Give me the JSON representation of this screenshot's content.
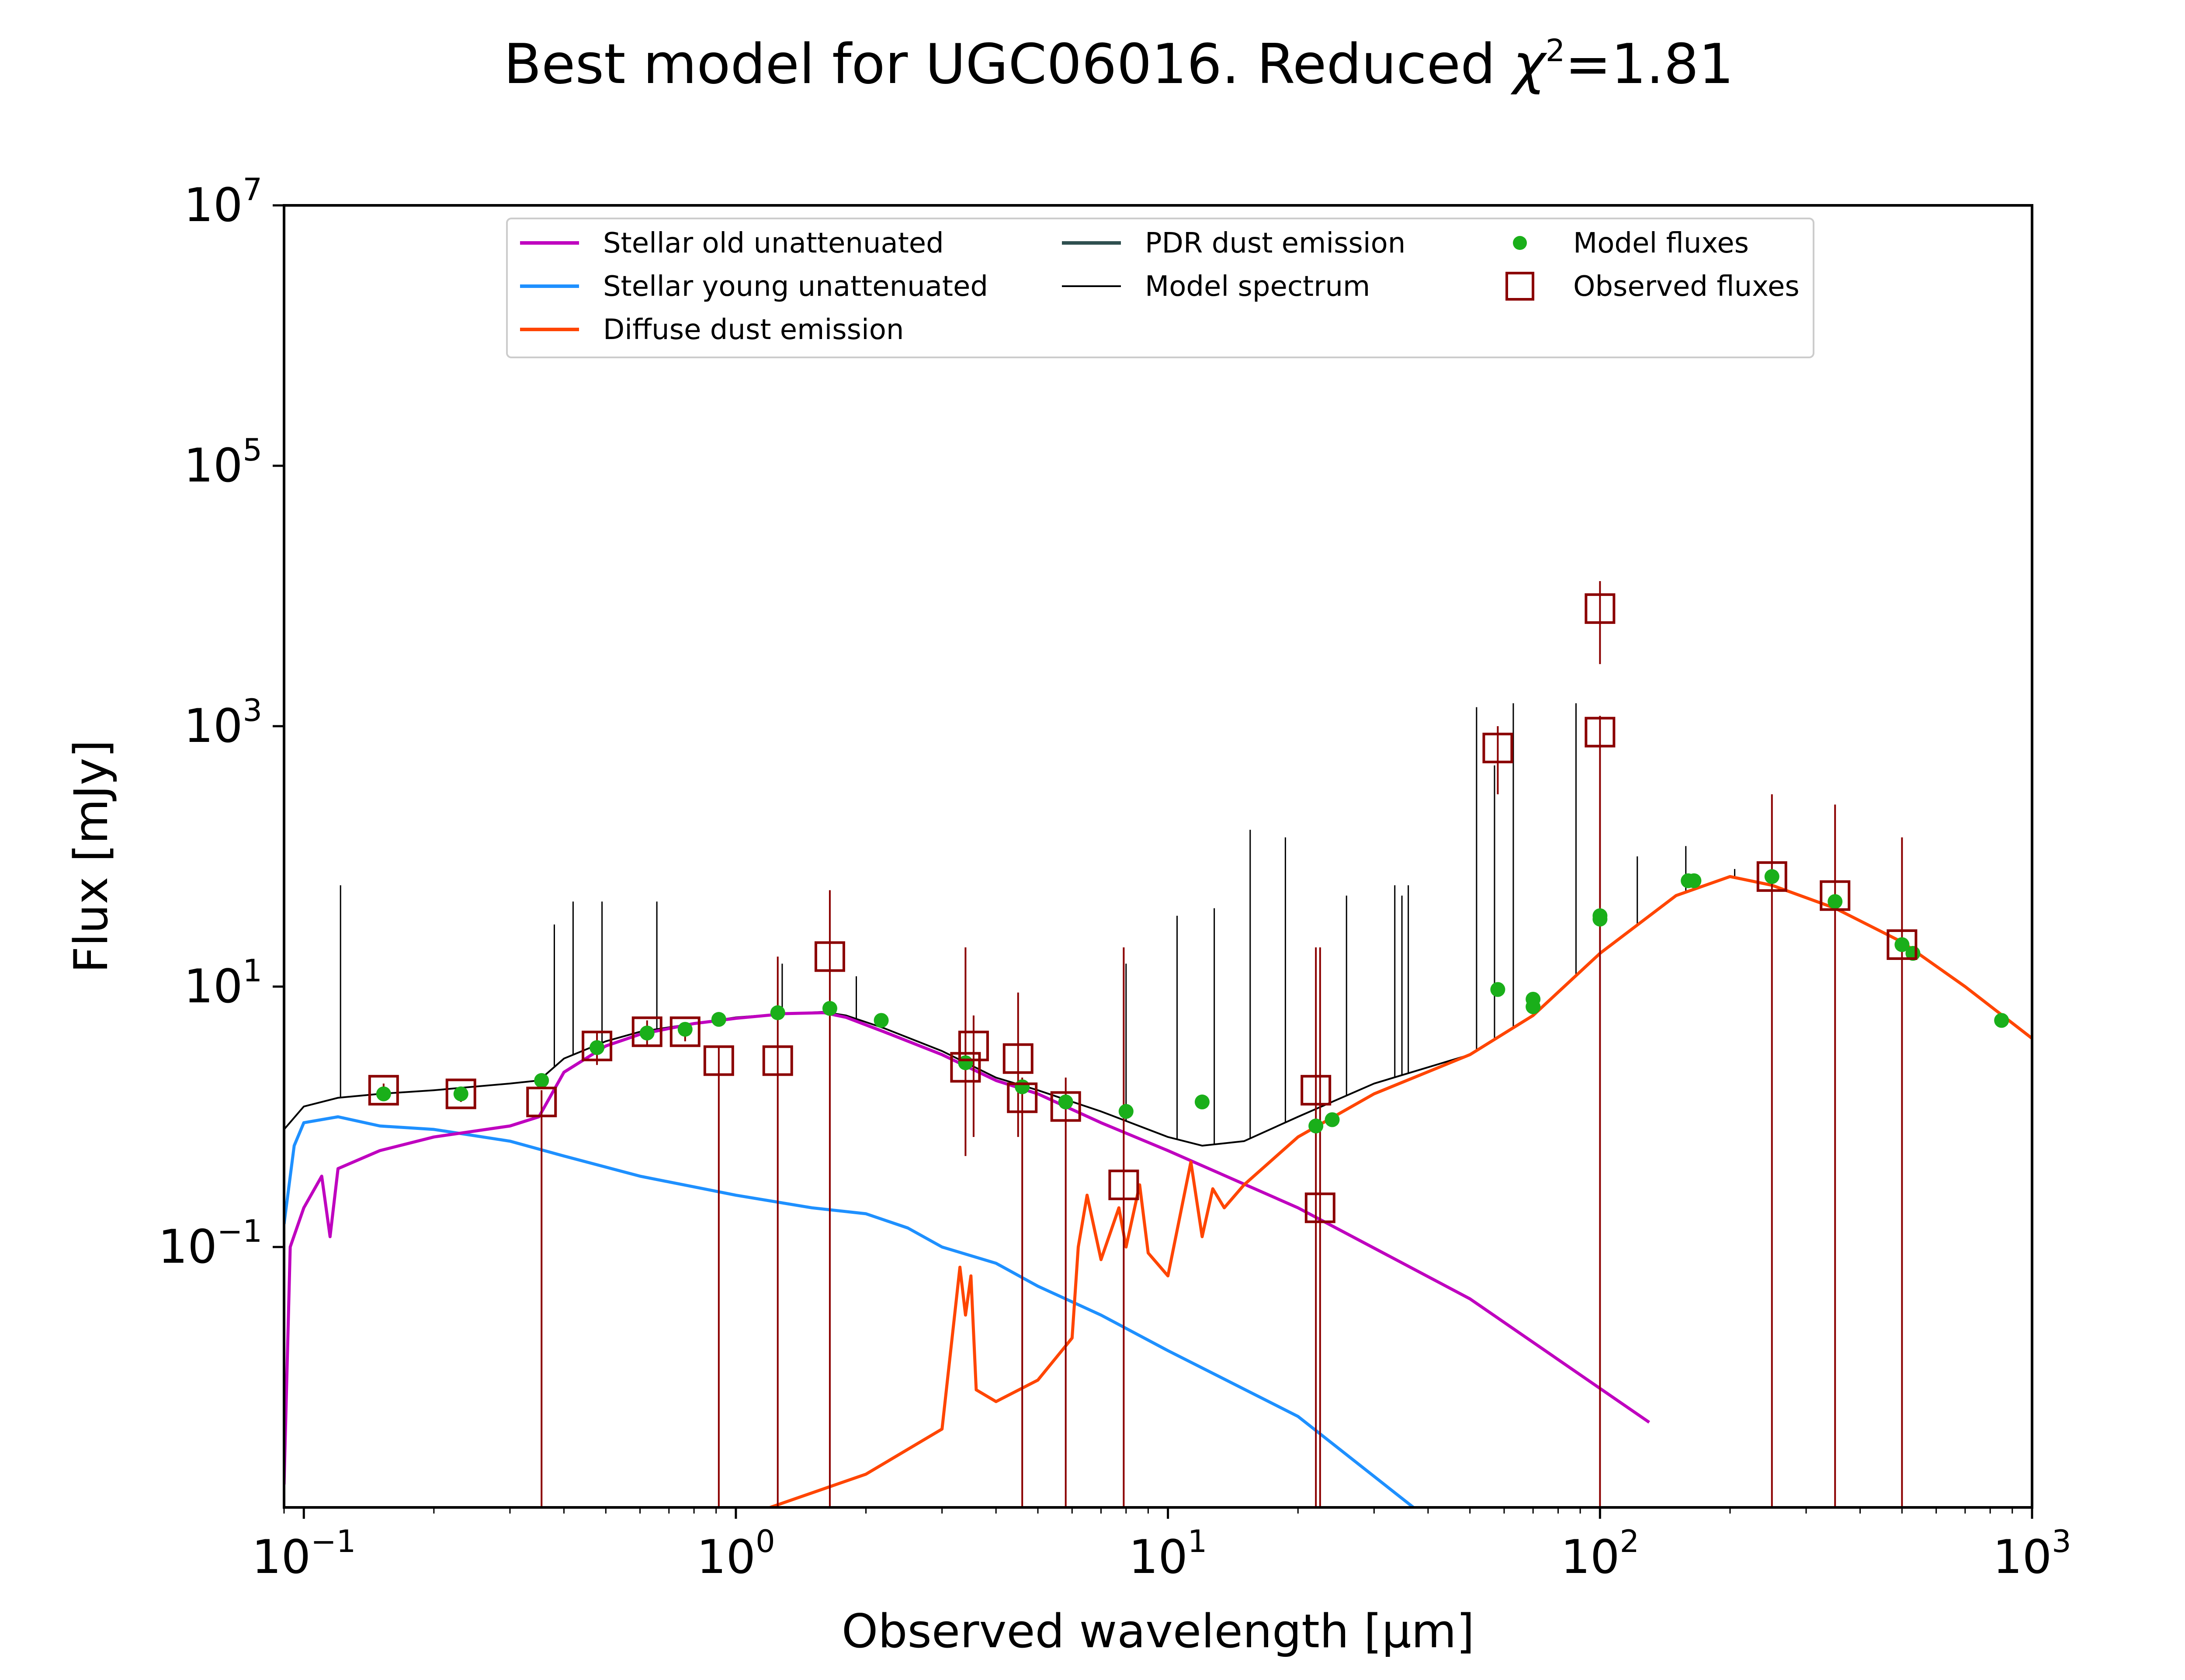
{
  "chart_data": {
    "type": "scatter",
    "title": "Best model for UGC06016. Reduced χ²=1.81",
    "title_parts": {
      "main": "Best model for UGC06016. Reduced ",
      "symbol": "χ",
      "sup": "2",
      "value": "=1.81"
    },
    "xlabel": "Observed wavelength [μm]",
    "ylabel": "Flux [mJy]",
    "x_scale": "log",
    "y_scale": "log",
    "xlim": [
      0.09,
      1000
    ],
    "ylim": [
      0.001,
      10000000
    ],
    "grid": false,
    "legend_position": "top-center",
    "x_ticks": [
      {
        "value": 0.1,
        "base": "10",
        "exp": "−1"
      },
      {
        "value": 1,
        "base": "10",
        "exp": "0"
      },
      {
        "value": 10,
        "base": "10",
        "exp": "1"
      },
      {
        "value": 100,
        "base": "10",
        "exp": "2"
      },
      {
        "value": 1000,
        "base": "10",
        "exp": "3"
      }
    ],
    "y_ticks": [
      {
        "value": 0.1,
        "base": "10",
        "exp": "−1"
      },
      {
        "value": 10,
        "base": "10",
        "exp": "1"
      },
      {
        "value": 1000,
        "base": "10",
        "exp": "3"
      },
      {
        "value": 100000,
        "base": "10",
        "exp": "5"
      },
      {
        "value": 10000000,
        "base": "10",
        "exp": "7"
      }
    ],
    "legend": [
      {
        "label": "Stellar old unattenuated",
        "kind": "line",
        "color": "#bf00bf"
      },
      {
        "label": "Stellar young unattenuated",
        "kind": "line",
        "color": "#1e90ff"
      },
      {
        "label": "Diffuse dust emission",
        "kind": "line",
        "color": "#ff4500"
      },
      {
        "label": "PDR dust emission",
        "kind": "line",
        "color": "#2f4f4f"
      },
      {
        "label": "Model spectrum",
        "kind": "line",
        "color": "#000000"
      },
      {
        "label": "Model fluxes",
        "kind": "marker-dot",
        "color": "#1aaf1a"
      },
      {
        "label": "Observed fluxes",
        "kind": "marker-square",
        "color": "#8b0000"
      }
    ],
    "series": [
      {
        "name": "Stellar old unattenuated",
        "color": "#bf00bf",
        "points": [
          [
            0.09,
            0.0015
          ],
          [
            0.093,
            0.1
          ],
          [
            0.1,
            0.2
          ],
          [
            0.11,
            0.35
          ],
          [
            0.115,
            0.12
          ],
          [
            0.12,
            0.4
          ],
          [
            0.15,
            0.55
          ],
          [
            0.2,
            0.7
          ],
          [
            0.3,
            0.85
          ],
          [
            0.35,
            1.0
          ],
          [
            0.4,
            2.2
          ],
          [
            0.5,
            3.5
          ],
          [
            0.6,
            4.3
          ],
          [
            0.8,
            5.2
          ],
          [
            1.0,
            5.7
          ],
          [
            1.3,
            6.2
          ],
          [
            1.6,
            6.3
          ],
          [
            1.8,
            5.8
          ],
          [
            2.2,
            4.5
          ],
          [
            3.0,
            3.0
          ],
          [
            4.0,
            1.9
          ],
          [
            5.0,
            1.5
          ],
          [
            7.0,
            0.9
          ],
          [
            10.0,
            0.55
          ],
          [
            20.0,
            0.2
          ],
          [
            50.0,
            0.04
          ],
          [
            130.0,
            0.0045
          ]
        ]
      },
      {
        "name": "Stellar young unattenuated",
        "color": "#1e90ff",
        "points": [
          [
            0.09,
            0.15
          ],
          [
            0.095,
            0.6
          ],
          [
            0.1,
            0.9
          ],
          [
            0.12,
            1.0
          ],
          [
            0.15,
            0.85
          ],
          [
            0.2,
            0.8
          ],
          [
            0.3,
            0.65
          ],
          [
            0.4,
            0.5
          ],
          [
            0.6,
            0.35
          ],
          [
            1.0,
            0.25
          ],
          [
            1.5,
            0.2
          ],
          [
            2.0,
            0.18
          ],
          [
            2.5,
            0.14
          ],
          [
            3.0,
            0.1
          ],
          [
            4.0,
            0.075
          ],
          [
            5.0,
            0.05
          ],
          [
            7.0,
            0.03
          ],
          [
            10.0,
            0.016
          ],
          [
            20.0,
            0.005
          ],
          [
            37.0,
            0.001
          ]
        ]
      },
      {
        "name": "Diffuse dust emission",
        "color": "#ff4500",
        "points": [
          [
            1.2,
            0.001
          ],
          [
            2.0,
            0.0018
          ],
          [
            3.0,
            0.004
          ],
          [
            3.3,
            0.07
          ],
          [
            3.4,
            0.03
          ],
          [
            3.5,
            0.06
          ],
          [
            3.6,
            0.008
          ],
          [
            4.0,
            0.0065
          ],
          [
            5.0,
            0.0095
          ],
          [
            6.0,
            0.02
          ],
          [
            6.2,
            0.1
          ],
          [
            6.5,
            0.25
          ],
          [
            7.0,
            0.08
          ],
          [
            7.7,
            0.2
          ],
          [
            8.0,
            0.1
          ],
          [
            8.6,
            0.3
          ],
          [
            9.0,
            0.09
          ],
          [
            10.0,
            0.06
          ],
          [
            11.3,
            0.45
          ],
          [
            12.0,
            0.12
          ],
          [
            12.7,
            0.28
          ],
          [
            13.5,
            0.2
          ],
          [
            15.0,
            0.3
          ],
          [
            20.0,
            0.7
          ],
          [
            30.0,
            1.5
          ],
          [
            50.0,
            3.0
          ],
          [
            70.0,
            6.0
          ],
          [
            100.0,
            18.0
          ],
          [
            150.0,
            50.0
          ],
          [
            200.0,
            70.0
          ],
          [
            250.0,
            60.0
          ],
          [
            350.0,
            40.0
          ],
          [
            500.0,
            22.0
          ],
          [
            700.0,
            10.0
          ],
          [
            1000.0,
            4.0
          ]
        ]
      },
      {
        "name": "Model spectrum",
        "color": "#000000",
        "points": [
          [
            0.09,
            0.8
          ],
          [
            0.1,
            1.2
          ],
          [
            0.12,
            1.4
          ],
          [
            0.15,
            1.5
          ],
          [
            0.2,
            1.6
          ],
          [
            0.3,
            1.8
          ],
          [
            0.35,
            1.9
          ],
          [
            0.4,
            2.8
          ],
          [
            0.5,
            3.8
          ],
          [
            0.6,
            4.5
          ],
          [
            0.8,
            5.2
          ],
          [
            1.0,
            5.8
          ],
          [
            1.3,
            6.2
          ],
          [
            1.6,
            6.4
          ],
          [
            1.8,
            6.0
          ],
          [
            2.2,
            4.8
          ],
          [
            3.0,
            3.2
          ],
          [
            4.0,
            2.0
          ],
          [
            5.0,
            1.6
          ],
          [
            7.0,
            1.1
          ],
          [
            10.0,
            0.7
          ],
          [
            12.0,
            0.6
          ],
          [
            15.0,
            0.65
          ],
          [
            20.0,
            1.0
          ],
          [
            30.0,
            1.8
          ],
          [
            50.0,
            3.0
          ],
          [
            70.0,
            6.0
          ],
          [
            100.0,
            18.0
          ],
          [
            150.0,
            50.0
          ],
          [
            200.0,
            70.0
          ],
          [
            250.0,
            60.0
          ],
          [
            350.0,
            40.0
          ],
          [
            500.0,
            22.0
          ],
          [
            700.0,
            10.0
          ],
          [
            1000.0,
            4.0
          ]
        ],
        "emission_lines": [
          [
            0.1216,
            60
          ],
          [
            0.38,
            30
          ],
          [
            0.42,
            45
          ],
          [
            0.49,
            45
          ],
          [
            0.6563,
            45
          ],
          [
            1.28,
            15
          ],
          [
            1.9,
            12
          ],
          [
            8.0,
            15
          ],
          [
            10.5,
            35
          ],
          [
            12.8,
            40
          ],
          [
            15.5,
            160
          ],
          [
            18.7,
            140
          ],
          [
            25.9,
            50
          ],
          [
            33.5,
            60
          ],
          [
            34.8,
            50
          ],
          [
            36.0,
            60
          ],
          [
            51.8,
            1400
          ],
          [
            57.0,
            500
          ],
          [
            63.0,
            1500
          ],
          [
            88.0,
            1500
          ],
          [
            122.0,
            100
          ],
          [
            158.0,
            120
          ],
          [
            205.0,
            80
          ]
        ]
      },
      {
        "name": "Model fluxes",
        "color": "#1aaf1a",
        "marker": "dot",
        "points": [
          [
            0.153,
            1.5
          ],
          [
            0.231,
            1.5
          ],
          [
            0.355,
            1.9
          ],
          [
            0.477,
            3.4
          ],
          [
            0.623,
            4.4
          ],
          [
            0.763,
            4.7
          ],
          [
            0.913,
            5.6
          ],
          [
            1.25,
            6.3
          ],
          [
            1.65,
            6.8
          ],
          [
            2.17,
            5.5
          ],
          [
            3.4,
            2.6
          ],
          [
            4.6,
            1.7
          ],
          [
            5.8,
            1.3
          ],
          [
            8.0,
            1.1
          ],
          [
            12.0,
            1.3
          ],
          [
            22.0,
            0.85
          ],
          [
            24.0,
            0.95
          ],
          [
            58.0,
            9.5
          ],
          [
            70.0,
            8.0
          ],
          [
            70.0,
            7.0
          ],
          [
            100.0,
            33.0
          ],
          [
            100.0,
            35.0
          ],
          [
            160.0,
            65.0
          ],
          [
            165.0,
            65.0
          ],
          [
            250.0,
            70.0
          ],
          [
            350.0,
            45.0
          ],
          [
            500.0,
            21.0
          ],
          [
            530.0,
            18.0
          ],
          [
            850.0,
            5.5
          ]
        ]
      },
      {
        "name": "Observed fluxes",
        "color": "#8b0000",
        "marker": "square",
        "points": [
          [
            0.153,
            1.6,
            1.4,
            1.8
          ],
          [
            0.231,
            1.5,
            1.3,
            1.7
          ],
          [
            0.355,
            1.3,
            0.001,
            1.6
          ],
          [
            0.477,
            3.5,
            2.5,
            4.5
          ],
          [
            0.623,
            4.5,
            3.5,
            5.5
          ],
          [
            0.763,
            4.5,
            3.8,
            5.2
          ],
          [
            0.913,
            2.7,
            0.001,
            3.5
          ],
          [
            1.25,
            2.7,
            0.001,
            17
          ],
          [
            1.65,
            17.0,
            0.001,
            55
          ],
          [
            3.4,
            2.4,
            0.5,
            20
          ],
          [
            3.55,
            3.5,
            0.7,
            6
          ],
          [
            4.5,
            2.8,
            0.7,
            9
          ],
          [
            4.6,
            1.4,
            0.001,
            2
          ],
          [
            5.8,
            1.2,
            0.001,
            2
          ],
          [
            7.9,
            0.3,
            0.001,
            20
          ],
          [
            22.0,
            1.6,
            0.001,
            20
          ],
          [
            22.5,
            0.2,
            0.001,
            20
          ],
          [
            58.0,
            680,
            300,
            1000
          ],
          [
            100.0,
            8000,
            3000,
            13000
          ],
          [
            100.0,
            900,
            0.001,
            1200
          ],
          [
            250.0,
            70,
            0.001,
            300
          ],
          [
            350.0,
            50,
            0.001,
            250
          ],
          [
            500.0,
            21,
            0.001,
            140
          ]
        ]
      }
    ]
  }
}
